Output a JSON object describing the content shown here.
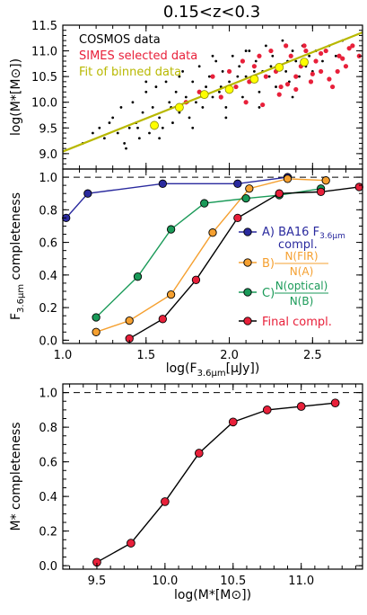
{
  "chart_data": [
    {
      "type": "scatter",
      "title": "0.15<z<0.3",
      "ylabel": "log(M*[M⊙])",
      "xlim": [
        1.0,
        2.8
      ],
      "ylim": [
        8.7,
        11.5
      ],
      "yticks": [
        "9.0",
        "9.5",
        "10.0",
        "10.5",
        "11.0",
        "11.5"
      ],
      "legend_placement": "top-left",
      "legend": [
        {
          "label": "COSMOS data",
          "color": "#000000"
        },
        {
          "label": "SIMES selected data",
          "color": "#e8203a"
        },
        {
          "label": "Fit of binned data",
          "color": "#b8b800"
        }
      ],
      "colors": {
        "cosmos": "#000000",
        "simes": "#e8203a",
        "binned": "#ffff00",
        "fit": "#b8b800"
      },
      "fit_line": {
        "x": [
          1.0,
          2.8
        ],
        "y": [
          9.04,
          11.36
        ]
      },
      "binned": {
        "x": [
          1.55,
          1.7,
          1.85,
          2.0,
          2.15,
          2.3,
          2.45
        ],
        "y": [
          9.55,
          9.9,
          10.15,
          10.25,
          10.45,
          10.68,
          10.78
        ]
      },
      "simes": {
        "x": [
          1.74,
          1.82,
          1.9,
          1.95,
          2.0,
          2.04,
          2.08,
          2.12,
          2.15,
          2.18,
          2.22,
          2.25,
          2.28,
          2.31,
          2.34,
          2.37,
          2.4,
          2.43,
          2.46,
          2.49,
          2.52,
          2.55,
          2.58,
          2.62,
          2.66,
          2.7,
          2.74,
          2.78,
          2.2,
          2.3,
          2.4,
          2.5,
          2.6,
          2.68,
          2.1,
          2.35,
          2.45,
          2.55,
          2.65,
          2.72
        ],
        "y": [
          10.0,
          10.2,
          10.5,
          10.1,
          10.6,
          10.3,
          10.8,
          10.4,
          10.7,
          10.9,
          10.5,
          11.0,
          10.6,
          10.3,
          11.1,
          10.9,
          10.5,
          10.7,
          11.0,
          10.4,
          10.8,
          10.6,
          11.0,
          10.3,
          10.9,
          10.7,
          11.1,
          10.9,
          9.95,
          10.15,
          10.25,
          10.55,
          10.45,
          10.85,
          10.0,
          10.35,
          11.1,
          10.95,
          10.6,
          11.05
        ]
      },
      "cosmos": {
        "x": [
          1.12,
          1.18,
          1.22,
          1.25,
          1.28,
          1.3,
          1.33,
          1.35,
          1.37,
          1.4,
          1.42,
          1.44,
          1.46,
          1.48,
          1.5,
          1.52,
          1.54,
          1.56,
          1.58,
          1.6,
          1.62,
          1.64,
          1.66,
          1.68,
          1.7,
          1.72,
          1.74,
          1.76,
          1.78,
          1.8,
          1.82,
          1.84,
          1.86,
          1.88,
          1.9,
          1.92,
          1.94,
          1.96,
          1.98,
          2.0,
          2.02,
          2.04,
          2.06,
          2.08,
          2.1,
          2.12,
          2.14,
          2.16,
          2.18,
          2.2,
          2.22,
          2.24,
          2.26,
          2.28,
          2.3,
          2.32,
          2.34,
          2.36,
          2.38,
          2.4,
          2.42,
          2.44,
          2.46,
          2.48,
          2.5,
          2.52,
          2.56,
          2.6,
          2.64,
          2.68,
          1.45,
          1.55,
          1.65,
          1.75,
          1.85,
          1.95,
          2.05,
          2.15,
          2.25,
          2.35,
          1.38,
          1.58,
          1.78,
          1.98,
          2.18,
          2.38,
          1.5,
          1.7,
          1.9,
          2.1
        ],
        "y": [
          9.2,
          9.4,
          9.5,
          9.3,
          9.6,
          9.7,
          9.4,
          9.9,
          9.2,
          9.5,
          10.0,
          9.6,
          9.3,
          9.8,
          10.2,
          9.4,
          9.9,
          10.3,
          9.7,
          9.5,
          10.4,
          10.0,
          9.6,
          10.2,
          9.8,
          10.6,
          10.1,
          9.7,
          10.4,
          10.0,
          10.7,
          9.9,
          10.3,
          10.5,
          10.1,
          10.8,
          10.2,
          10.6,
          9.9,
          10.4,
          10.9,
          10.3,
          10.7,
          10.1,
          10.5,
          11.0,
          10.4,
          10.8,
          10.2,
          10.6,
          11.1,
          10.5,
          10.9,
          10.3,
          10.7,
          11.2,
          10.6,
          10.4,
          11.0,
          10.8,
          10.5,
          11.1,
          10.7,
          10.9,
          10.6,
          11.0,
          10.8,
          11.1,
          10.9,
          11.2,
          9.5,
          9.6,
          9.9,
          10.0,
          10.2,
          10.3,
          10.5,
          10.6,
          10.7,
          10.8,
          9.1,
          9.3,
          9.5,
          9.7,
          9.9,
          10.1,
          10.4,
          10.5,
          10.9,
          11.0
        ]
      }
    },
    {
      "type": "line",
      "xlabel": "log(F3.6μm[μJy])",
      "ylabel": "F3.6μm completeness",
      "xlim": [
        1.0,
        2.8
      ],
      "ylim": [
        -0.02,
        1.05
      ],
      "xticks": [
        "1.0",
        "1.5",
        "2.0",
        "2.5"
      ],
      "yticks": [
        "0.0",
        "0.2",
        "0.4",
        "0.6",
        "0.8",
        "1.0"
      ],
      "reference_line": 1.0,
      "legend_placement": "right",
      "series": [
        {
          "name": "A) BA16 F3.6μm compl.",
          "legend_a": "A) BA16 F",
          "legend_sub": "3.6μm",
          "legend_b": "compl.",
          "color": "#2a2a9e",
          "marker": "#2a2a9e",
          "x": [
            1.02,
            1.15,
            1.6,
            2.05,
            2.35
          ],
          "y": [
            0.75,
            0.9,
            0.96,
            0.96,
            1.0
          ]
        },
        {
          "name": "B) N(FIR)/N(A)",
          "legend_prefix": "B)",
          "num": "N(FIR)",
          "den": "N(A)",
          "color": "#f5a030",
          "marker": "#f5a030",
          "x": [
            1.2,
            1.4,
            1.65,
            1.9,
            2.12,
            2.35,
            2.58
          ],
          "y": [
            0.05,
            0.12,
            0.28,
            0.66,
            0.93,
            0.99,
            0.98
          ]
        },
        {
          "name": "C) N(optical)/N(B)",
          "legend_prefix": "C)",
          "num": "N(optical)",
          "den": "N(B)",
          "color": "#1a9a58",
          "marker": "#1a9a58",
          "x": [
            1.2,
            1.45,
            1.65,
            1.85,
            2.1,
            2.3,
            2.55
          ],
          "y": [
            0.14,
            0.39,
            0.68,
            0.84,
            0.87,
            0.89,
            0.93
          ]
        },
        {
          "name": "Final compl.",
          "legend_a": "Final compl.",
          "color": "#000000",
          "marker": "#e8203a",
          "x": [
            1.4,
            1.6,
            1.8,
            2.05,
            2.3,
            2.55,
            2.78
          ],
          "y": [
            0.01,
            0.13,
            0.37,
            0.75,
            0.9,
            0.91,
            0.94
          ]
        }
      ]
    },
    {
      "type": "line",
      "xlabel": "log(M*[M⊙])",
      "ylabel": "M* completeness",
      "xlim": [
        9.25,
        11.45
      ],
      "ylim": [
        -0.02,
        1.05
      ],
      "xticks": [
        "9.5",
        "10.0",
        "10.5",
        "11.0"
      ],
      "yticks": [
        "0.0",
        "0.2",
        "0.4",
        "0.6",
        "0.8",
        "1.0"
      ],
      "reference_line": 1.0,
      "series": [
        {
          "color": "#000000",
          "marker": "#e8203a",
          "x": [
            9.5,
            9.75,
            10.0,
            10.25,
            10.5,
            10.75,
            11.0,
            11.25
          ],
          "y": [
            0.02,
            0.13,
            0.37,
            0.65,
            0.83,
            0.9,
            0.92,
            0.94
          ]
        }
      ]
    }
  ]
}
